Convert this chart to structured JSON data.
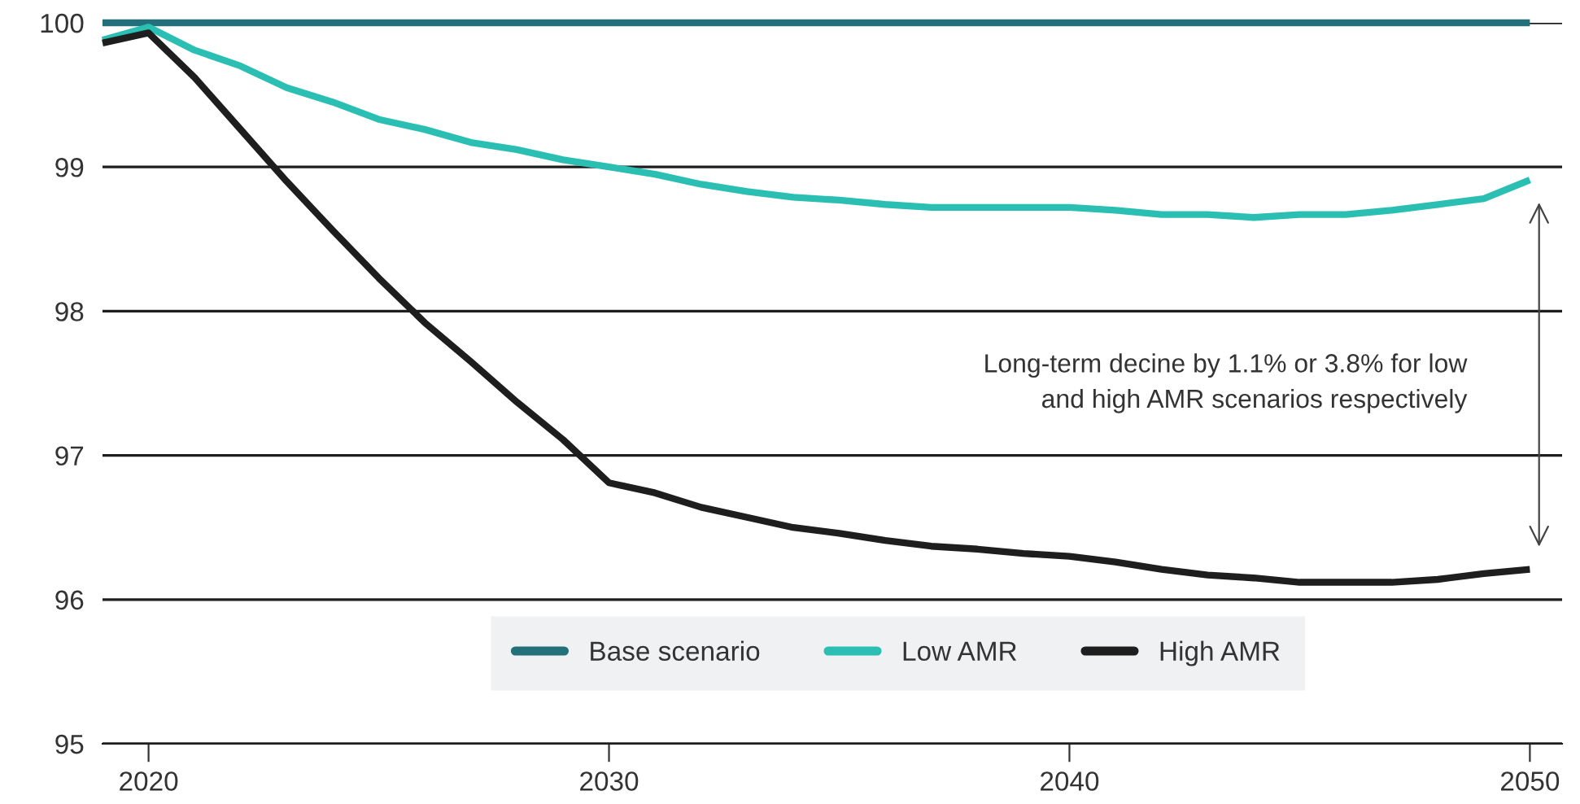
{
  "chart_data": {
    "type": "line",
    "x": [
      2019,
      2020,
      2021,
      2022,
      2023,
      2024,
      2025,
      2026,
      2027,
      2028,
      2029,
      2030,
      2031,
      2032,
      2033,
      2034,
      2035,
      2036,
      2037,
      2038,
      2039,
      2040,
      2041,
      2042,
      2043,
      2044,
      2045,
      2046,
      2047,
      2048,
      2049,
      2050
    ],
    "series": [
      {
        "name": "Base scenario",
        "color": "#24707a",
        "values": [
          100,
          100,
          100,
          100,
          100,
          100,
          100,
          100,
          100,
          100,
          100,
          100,
          100,
          100,
          100,
          100,
          100,
          100,
          100,
          100,
          100,
          100,
          100,
          100,
          100,
          100,
          100,
          100,
          100,
          100,
          100,
          100
        ]
      },
      {
        "name": "Low AMR",
        "color": "#2bbfb3",
        "values": [
          99.88,
          99.97,
          99.81,
          99.7,
          99.55,
          99.45,
          99.33,
          99.26,
          99.17,
          99.12,
          99.05,
          99.0,
          98.95,
          98.88,
          98.83,
          98.79,
          98.77,
          98.74,
          98.72,
          98.72,
          98.72,
          98.72,
          98.7,
          98.67,
          98.67,
          98.65,
          98.67,
          98.67,
          98.7,
          98.74,
          98.78,
          98.91
        ]
      },
      {
        "name": "High AMR",
        "color": "#1e1e1e",
        "values": [
          99.86,
          99.93,
          99.62,
          99.26,
          98.9,
          98.56,
          98.23,
          97.92,
          97.65,
          97.37,
          97.11,
          96.81,
          96.74,
          96.64,
          96.57,
          96.5,
          96.46,
          96.41,
          96.37,
          96.35,
          96.32,
          96.3,
          96.26,
          96.21,
          96.17,
          96.15,
          96.12,
          96.12,
          96.12,
          96.14,
          96.18,
          96.21
        ]
      }
    ],
    "xlim": [
      2019,
      2050.7
    ],
    "xticks": [
      2020,
      2030,
      2040,
      2050
    ],
    "ylim": [
      95,
      100
    ],
    "yticks": [
      95,
      96,
      97,
      98,
      99,
      100
    ],
    "grid": "y",
    "legend": "bottom",
    "marker": "none",
    "line_style": "solid",
    "annotations": [
      "Long-term decine by 1.1% or 3.8% for low\nand high AMR scenarios respectively"
    ]
  }
}
